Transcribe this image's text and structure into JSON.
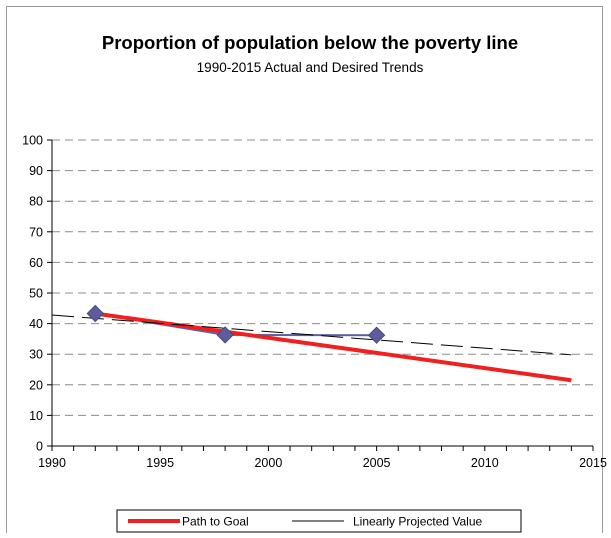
{
  "chart_data": {
    "type": "line",
    "title": "Proportion of population below the poverty line",
    "subtitle": "1990-2015 Actual and Desired Trends",
    "xlabel": "",
    "ylabel": "",
    "xlim": [
      1990,
      2015
    ],
    "ylim": [
      0,
      100
    ],
    "x_ticks": [
      1990,
      1995,
      2000,
      2005,
      2010,
      2015
    ],
    "y_ticks": [
      0,
      10,
      20,
      30,
      40,
      50,
      60,
      70,
      80,
      90,
      100
    ],
    "grid": "horizontal-dashed",
    "legend_position": "bottom",
    "series": [
      {
        "key": "actual",
        "style": "line-with-diamond-markers",
        "color": "#5b5fa5",
        "x": [
          1992,
          1998,
          2005
        ],
        "y": [
          43.3,
          36.3,
          36.2
        ]
      },
      {
        "name": "Path to Goal",
        "style": "thick-solid",
        "color": "#f02020",
        "x": [
          1992,
          2014
        ],
        "y": [
          43.3,
          21.5
        ]
      },
      {
        "name": "Linearly Projected Value",
        "style": "long-dash",
        "color": "#000000",
        "x": [
          1990,
          2014
        ],
        "y": [
          42.8,
          29.8
        ]
      }
    ]
  }
}
